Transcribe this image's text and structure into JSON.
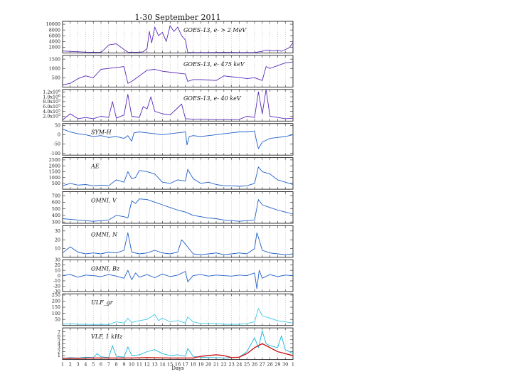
{
  "chart_data": {
    "type": "line",
    "title": "1-30 September 2011",
    "xlabel": "Days",
    "x_ticks": [
      "1",
      "2",
      "3",
      "4",
      "5",
      "6",
      "7",
      "8",
      "9",
      "10",
      "11",
      "12",
      "13",
      "14",
      "15",
      "16",
      "17",
      "18",
      "19",
      "20",
      "21",
      "22",
      "23",
      "24",
      "25",
      "26",
      "27",
      "28",
      "29",
      "30",
      "1"
    ],
    "xlim": [
      1,
      31
    ],
    "grid": "dotted vertical at day boundaries",
    "panels": [
      {
        "label": "GOES-13, e- > 2 MeV",
        "ylim": [
          0,
          11000
        ],
        "yticks": [
          "10000",
          "8000",
          "6000",
          "4000",
          "2000"
        ],
        "ytick_values": [
          10000,
          8000,
          6000,
          4000,
          2000
        ],
        "series": [
          {
            "color": "#5a2ab8",
            "x": [
              1,
              4,
              6,
              6.5,
              7,
              8,
              9,
              9.5,
              10,
              11,
              11.5,
              12,
              12.3,
              12.6,
              13,
              13.5,
              14,
              14.5,
              15,
              15.5,
              16,
              16.5,
              17,
              17.3,
              18,
              20,
              22,
              24,
              26,
              27,
              27.5,
              28,
              28.5,
              29,
              29.5,
              30,
              30.5,
              31
            ],
            "y": [
              700,
              300,
              200,
              1400,
              2800,
              3200,
              1200,
              300,
              200,
              300,
              400,
              1500,
              7500,
              3500,
              9000,
              6000,
              7200,
              4000,
              9500,
              7500,
              9000,
              6000,
              4500,
              200,
              150,
              150,
              200,
              150,
              150,
              600,
              1000,
              900,
              700,
              900,
              600,
              1200,
              1800,
              3500
            ]
          }
        ]
      },
      {
        "label": "GOES-13, e- 475 keV",
        "ylim": [
          0,
          1700
        ],
        "yticks": [
          "1500",
          "1000",
          "500"
        ],
        "ytick_values": [
          1500,
          1000,
          500
        ],
        "series": [
          {
            "color": "#5a2ab8",
            "x": [
              1,
              2,
              3,
              4,
              5,
              6,
              7,
              8,
              9,
              9.5,
              10,
              11,
              12,
              13,
              14,
              15,
              16,
              17,
              17.3,
              18,
              19,
              20,
              21,
              22,
              23,
              24,
              25,
              26,
              27,
              27.5,
              28,
              29,
              30,
              31
            ],
            "y": [
              120,
              200,
              450,
              600,
              500,
              950,
              1000,
              1050,
              1100,
              200,
              300,
              600,
              900,
              950,
              850,
              800,
              750,
              700,
              300,
              400,
              400,
              380,
              350,
              600,
              550,
              520,
              450,
              500,
              350,
              1100,
              1000,
              1150,
              1300,
              1350
            ]
          }
        ]
      },
      {
        "label": "GOES-13, e- 40 keV",
        "ylim": [
          0,
          1300000
        ],
        "yticks": [
          "1.2x10^6",
          "1.0x10^6",
          "8.0x10^5",
          "6.0x10^5",
          "4.0x10^5",
          "2.0x10^5"
        ],
        "ytick_values": [
          1200000,
          1000000,
          800000,
          600000,
          400000,
          200000
        ],
        "series": [
          {
            "color": "#5a2ab8",
            "x": [
              1,
              2,
              3,
              4,
              5,
              6,
              7,
              7.5,
              8,
              9,
              9.5,
              10,
              11,
              11.5,
              12,
              12.5,
              13,
              14,
              15,
              16,
              16.5,
              17,
              18,
              19,
              20,
              21,
              22,
              23,
              24,
              25,
              26,
              26.5,
              27,
              27.5,
              28,
              29,
              30,
              31
            ],
            "y": [
              50000,
              300000,
              100000,
              150000,
              100000,
              200000,
              150000,
              800000,
              120000,
              250000,
              1100000,
              200000,
              150000,
              600000,
              500000,
              1000000,
              400000,
              300000,
              250000,
              550000,
              700000,
              100000,
              80000,
              80000,
              70000,
              60000,
              60000,
              60000,
              70000,
              200000,
              150000,
              1200000,
              300000,
              1300000,
              200000,
              150000,
              100000,
              120000
            ]
          }
        ]
      },
      {
        "label": "SYM-H",
        "ylim": [
          -110,
          60
        ],
        "yticks": [
          "50",
          "0",
          "-50",
          "-100"
        ],
        "ytick_values": [
          50,
          0,
          -50,
          -100
        ],
        "series": [
          {
            "color": "#2060c8",
            "x": [
              1,
              2,
              3,
              4,
              5,
              6,
              7,
              8,
              9,
              9.5,
              10,
              10.3,
              11,
              12,
              13,
              14,
              15,
              16,
              17,
              17.2,
              17.5,
              18,
              19,
              20,
              21,
              22,
              23,
              24,
              25,
              26,
              26.2,
              26.5,
              27,
              28,
              29,
              30,
              31
            ],
            "y": [
              30,
              15,
              5,
              0,
              -10,
              -5,
              -15,
              -10,
              -20,
              -5,
              -35,
              10,
              15,
              10,
              5,
              0,
              5,
              10,
              15,
              -55,
              -10,
              -5,
              -10,
              -5,
              0,
              5,
              10,
              15,
              15,
              20,
              -25,
              -75,
              -40,
              -20,
              -15,
              -10,
              0
            ]
          }
        ]
      },
      {
        "label": "AE",
        "ylim": [
          0,
          2700
        ],
        "yticks": [
          "2500",
          "2000",
          "1500",
          "1000",
          "500"
        ],
        "ytick_values": [
          2500,
          2000,
          1500,
          1000,
          500
        ],
        "series": [
          {
            "color": "#2060c8",
            "x": [
              1,
              2,
              3,
              4,
              5,
              6,
              7,
              8,
              9,
              9.5,
              10,
              10.5,
              11,
              12,
              13,
              14,
              15,
              16,
              17,
              17.3,
              18,
              19,
              20,
              21,
              22,
              23,
              24,
              25,
              26,
              26.5,
              27,
              28,
              29,
              30,
              31
            ],
            "y": [
              300,
              500,
              350,
              400,
              300,
              350,
              300,
              800,
              600,
              1500,
              900,
              1000,
              1600,
              1500,
              1300,
              600,
              500,
              800,
              700,
              1700,
              900,
              500,
              600,
              400,
              300,
              300,
              250,
              300,
              500,
              1900,
              1500,
              1300,
              800,
              600,
              400
            ]
          }
        ]
      },
      {
        "label": "OMNI, V",
        "ylim": [
          280,
          760
        ],
        "yticks": [
          "700",
          "600",
          "500",
          "400",
          "300"
        ],
        "ytick_values": [
          700,
          600,
          500,
          400,
          300
        ],
        "series": [
          {
            "color": "#2060c8",
            "x": [
              1,
              2,
              3,
              4,
              5,
              6,
              7,
              8,
              9,
              9.5,
              10,
              10.5,
              11,
              12,
              13,
              14,
              15,
              16,
              17,
              18,
              19,
              20,
              21,
              22,
              23,
              24,
              25,
              26,
              26.5,
              27,
              28,
              29,
              30,
              31
            ],
            "y": [
              350,
              340,
              330,
              320,
              310,
              320,
              330,
              400,
              380,
              360,
              620,
              580,
              650,
              640,
              600,
              560,
              520,
              480,
              450,
              400,
              380,
              360,
              350,
              330,
              320,
              310,
              320,
              330,
              640,
              560,
              520,
              480,
              450,
              420
            ]
          }
        ]
      },
      {
        "label": "OMNI, N",
        "ylim": [
          0,
          36
        ],
        "yticks": [
          "30",
          "20",
          "10"
        ],
        "ytick_values": [
          30,
          20,
          10
        ],
        "series": [
          {
            "color": "#2060c8",
            "x": [
              1,
              2,
              3,
              4,
              5,
              6,
              7,
              8,
              9,
              9.5,
              10,
              11,
              12,
              13,
              14,
              15,
              16,
              16.5,
              17,
              18,
              19,
              20,
              21,
              22,
              23,
              24,
              25,
              26,
              26.3,
              26.6,
              27,
              28,
              29,
              30,
              31
            ],
            "y": [
              5,
              12,
              6,
              4,
              5,
              4,
              6,
              5,
              8,
              28,
              6,
              4,
              5,
              8,
              5,
              4,
              6,
              20,
              15,
              4,
              3,
              4,
              5,
              3,
              4,
              5,
              4,
              10,
              28,
              20,
              8,
              5,
              4,
              3,
              4
            ]
          }
        ]
      },
      {
        "label": "OMNI, Bz",
        "ylim": [
          -30,
          30
        ],
        "yticks": [
          "30",
          "20",
          "10",
          "0",
          "-10",
          "-20",
          "-30"
        ],
        "ytick_values": [
          30,
          20,
          10,
          0,
          -10,
          -20,
          -30
        ],
        "series": [
          {
            "color": "#2060c8",
            "x": [
              1,
              2,
              3,
              4,
              5,
              6,
              7,
              8,
              9,
              9.5,
              10,
              10.5,
              11,
              12,
              13,
              14,
              15,
              16,
              17,
              17.3,
              18,
              19,
              20,
              21,
              22,
              23,
              24,
              25,
              26,
              26.3,
              26.6,
              27,
              28,
              29,
              30,
              31
            ],
            "y": [
              0,
              2,
              -3,
              1,
              0,
              -2,
              2,
              -1,
              -5,
              10,
              -8,
              5,
              -3,
              2,
              -4,
              3,
              -2,
              1,
              8,
              -12,
              0,
              2,
              -1,
              1,
              0,
              -1,
              1,
              0,
              5,
              -25,
              10,
              -5,
              2,
              -2,
              1,
              0
            ]
          }
        ]
      },
      {
        "label": "ULF_gr",
        "ylim": [
          0,
          260
        ],
        "yticks": [
          "250",
          "200",
          "150",
          "100",
          "50"
        ],
        "ytick_values": [
          250,
          200,
          150,
          100,
          50
        ],
        "series": [
          {
            "color": "#40c8e8",
            "x": [
              1,
              2,
              3,
              4,
              5,
              6,
              7,
              8,
              9,
              9.5,
              10,
              11,
              12,
              13,
              13.5,
              14,
              15,
              16,
              17,
              17.3,
              18,
              19,
              20,
              21,
              22,
              23,
              24,
              25,
              26,
              26.5,
              27,
              28,
              29,
              30,
              31
            ],
            "y": [
              10,
              15,
              10,
              10,
              8,
              10,
              8,
              30,
              20,
              60,
              25,
              40,
              50,
              90,
              40,
              60,
              30,
              40,
              20,
              70,
              30,
              15,
              20,
              15,
              10,
              10,
              10,
              15,
              30,
              140,
              80,
              60,
              40,
              30,
              20
            ]
          }
        ]
      },
      {
        "label": "VLF, 1 kHz",
        "ylim": [
          0,
          8
        ],
        "yticks": [
          "7",
          "6",
          "5",
          "4",
          "3",
          "2",
          "1"
        ],
        "ytick_values": [
          7,
          6,
          5,
          4,
          3,
          2,
          1
        ],
        "series": [
          {
            "name": "",
            "color": "#18b4e0",
            "x": [
              1,
              2,
              3,
              4,
              5,
              5.5,
              6,
              7,
              7.5,
              8,
              9,
              9.5,
              10,
              11,
              12,
              13,
              14,
              15,
              16,
              17,
              17.3,
              18,
              19,
              20,
              21,
              22,
              23,
              24,
              25,
              26,
              26.5,
              27,
              27.5,
              28,
              29,
              29.5,
              30,
              31
            ],
            "y": [
              0.3,
              0.5,
              0.4,
              0.6,
              0.5,
              1.5,
              0.7,
              0.5,
              3.5,
              0.8,
              0.6,
              3.2,
              1.0,
              1.2,
              2.0,
              2.5,
              1.5,
              1.0,
              1.2,
              0.8,
              2.8,
              0.8,
              0.6,
              0.5,
              0.5,
              0.4,
              0.5,
              0.6,
              2.0,
              5.5,
              3.0,
              7.2,
              4.0,
              3.5,
              3.0,
              6.0,
              2.5,
              1.5
            ]
          },
          {
            "name": "",
            "color": "#cc1818",
            "x": [
              1,
              3,
              5,
              8,
              10,
              12,
              15,
              18,
              19,
              20,
              21,
              22,
              23,
              24,
              25,
              26,
              27,
              28,
              29,
              30,
              31
            ],
            "y": [
              0.3,
              0.3,
              0.4,
              0.4,
              0.4,
              0.5,
              0.4,
              0.4,
              0.8,
              1.0,
              1.2,
              1.0,
              0.5,
              0.6,
              1.5,
              3.0,
              4.0,
              3.0,
              2.0,
              1.5,
              1.0
            ]
          }
        ]
      }
    ]
  }
}
